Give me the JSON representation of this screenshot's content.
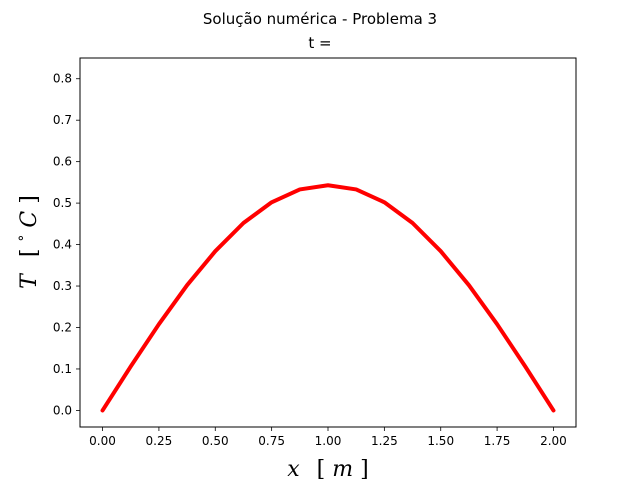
{
  "chart_data": {
    "type": "line",
    "title": "Solução numérica - Problema 3",
    "subtitle": "t = ",
    "xlabel": {
      "symbol": "x",
      "unit_open": "[",
      "unit": "m",
      "unit_close": "]"
    },
    "ylabel": {
      "symbol": "T",
      "unit_open": "[",
      "unit_degree": "°",
      "unit": "C",
      "unit_close": "]"
    },
    "xlim": [
      -0.1,
      2.1
    ],
    "ylim": [
      -0.04,
      0.85
    ],
    "xticks": [
      0.0,
      0.25,
      0.5,
      0.75,
      1.0,
      1.25,
      1.5,
      1.75,
      2.0
    ],
    "xtick_labels": [
      "0.00",
      "0.25",
      "0.50",
      "0.75",
      "1.00",
      "1.25",
      "1.50",
      "1.75",
      "2.00"
    ],
    "yticks": [
      0.0,
      0.1,
      0.2,
      0.3,
      0.4,
      0.5,
      0.6,
      0.7,
      0.8
    ],
    "ytick_labels": [
      "0.0",
      "0.1",
      "0.2",
      "0.3",
      "0.4",
      "0.5",
      "0.6",
      "0.7",
      "0.8"
    ],
    "grid": false,
    "series": [
      {
        "color": "#ff0000",
        "x": [
          0.0,
          0.125,
          0.25,
          0.375,
          0.5,
          0.625,
          0.75,
          0.875,
          1.0,
          1.125,
          1.25,
          1.375,
          1.5,
          1.625,
          1.75,
          1.875,
          2.0
        ],
        "y": [
          0.0,
          0.106,
          0.208,
          0.302,
          0.384,
          0.452,
          0.502,
          0.533,
          0.543,
          0.533,
          0.502,
          0.452,
          0.384,
          0.302,
          0.208,
          0.106,
          0.0
        ]
      }
    ]
  }
}
